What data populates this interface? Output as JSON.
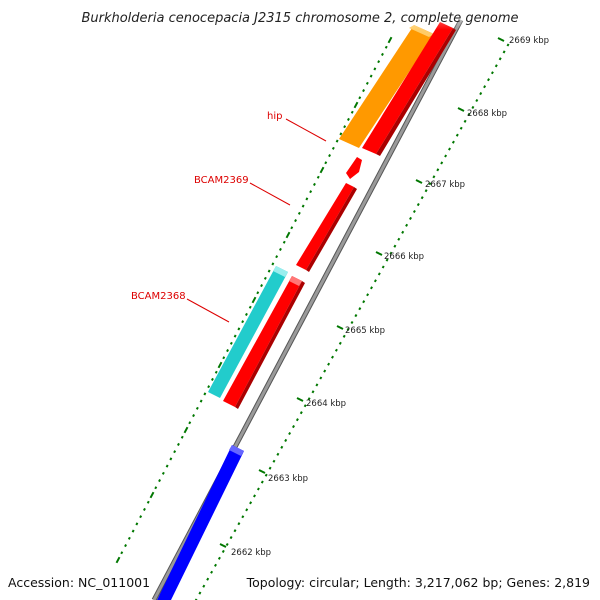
{
  "title": "Burkholderia cenocepacia J2315 chromosome 2, complete genome",
  "ruler": {
    "ticks": [
      {
        "label": "2669 kbp"
      },
      {
        "label": "2668 kbp"
      },
      {
        "label": "2667 kbp"
      },
      {
        "label": "2666 kbp"
      },
      {
        "label": "2665 kbp"
      },
      {
        "label": "2664 kbp"
      },
      {
        "label": "2663 kbp"
      },
      {
        "label": "2662 kbp"
      }
    ]
  },
  "gene_labels": [
    {
      "text": "hip"
    },
    {
      "text": "BCAM2369"
    },
    {
      "text": "BCAM2368"
    }
  ],
  "colors": {
    "backbone": "#888888",
    "gene_red": "#ff0000",
    "gene_orange": "#ff9900",
    "gene_cyan": "#22cccc",
    "gene_blue": "#0000ff",
    "tick_green": "#007700",
    "label_red": "#dd0000"
  },
  "footer": {
    "accession": "Accession: NC_011001",
    "summary": "Topology: circular; Length: 3,217,062 bp; Genes: 2,819"
  }
}
